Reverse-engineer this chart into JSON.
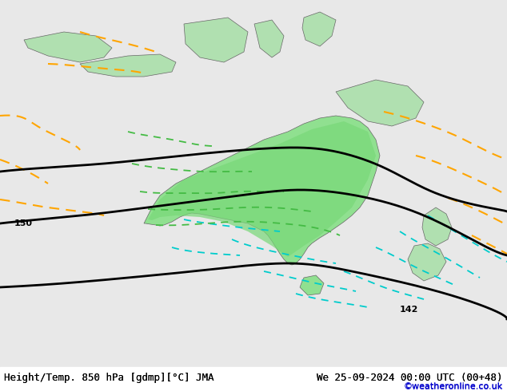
{
  "title_left": "Height/Temp. 850 hPa [gdmp][°C] JMA",
  "title_right": "We 25-09-2024 00:00 UTC (00+48)",
  "credit": "©weatheronline.co.uk",
  "background_color": "#e8e8e8",
  "land_color": "#b0e0b0",
  "australia_color": "#90e090",
  "contour_label_150": "150",
  "contour_label_142": "142",
  "title_fontsize": 9,
  "credit_fontsize": 8,
  "credit_color": "#0000cc"
}
